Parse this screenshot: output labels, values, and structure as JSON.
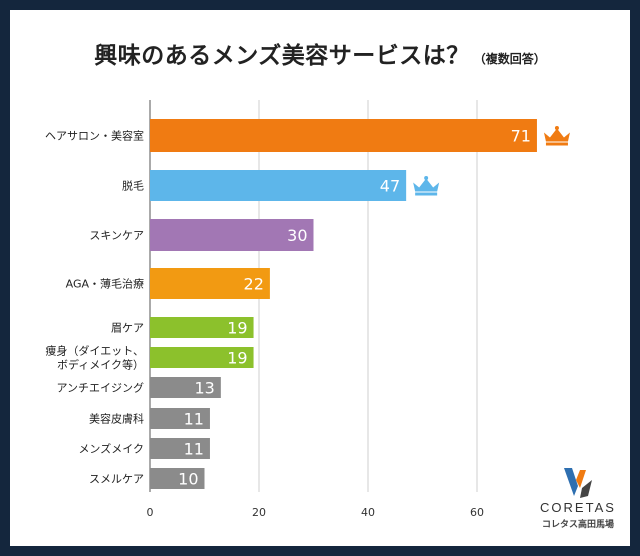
{
  "title": "興味のあるメンズ美容サービスは？",
  "subtitle": "（複数回答）",
  "chart_data": {
    "type": "bar",
    "orientation": "horizontal",
    "categories": [
      "ヘアサロン・美容室",
      "脱毛",
      "スキンケア",
      "AGA・薄毛治療",
      "眉ケア",
      "痩身（ダイエット、\nボディメイク等）",
      "アンチエイジング",
      "美容皮膚科",
      "メンズメイク",
      "スメルケア"
    ],
    "values": [
      71,
      47,
      30,
      22,
      19,
      19,
      13,
      11,
      11,
      10
    ],
    "colors": [
      "#f07b12",
      "#5db6ea",
      "#a277b4",
      "#f29a12",
      "#8cc12c",
      "#8cc12c",
      "#8b8b8b",
      "#8b8b8b",
      "#8b8b8b",
      "#8b8b8b"
    ],
    "crowns": [
      {
        "index": 0,
        "color": "#f07b12"
      },
      {
        "index": 1,
        "color": "#5db6ea"
      }
    ],
    "x_ticks": [
      0,
      20,
      40,
      60
    ],
    "xlim": [
      0,
      80
    ],
    "grid": true,
    "title": "興味のあるメンズ美容サービスは？",
    "xlabel": "",
    "ylabel": ""
  },
  "logo": {
    "name": "CORETAS",
    "tagline": "コレタス高田馬場",
    "colors": [
      "#2e6fb0",
      "#f07b12",
      "#444444"
    ]
  }
}
